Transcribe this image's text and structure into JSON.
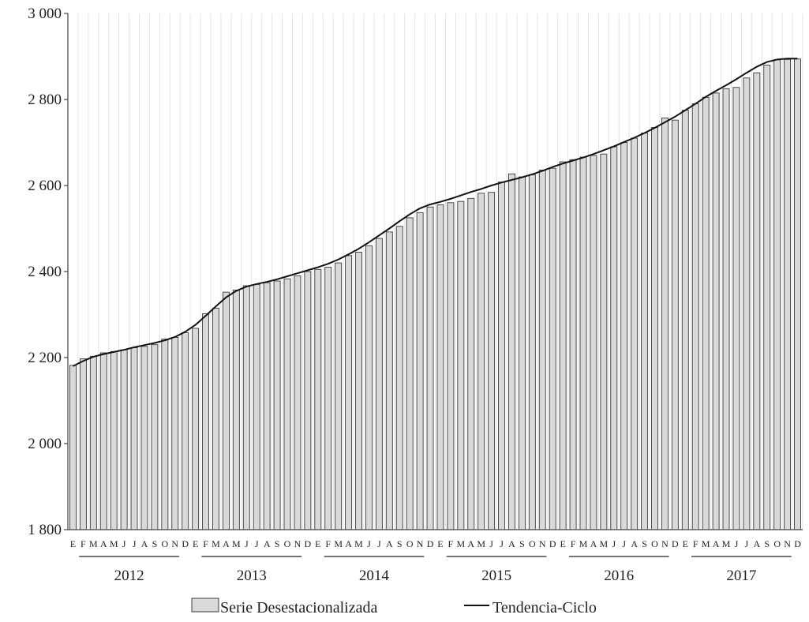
{
  "chart_data": {
    "type": "bar",
    "title": "",
    "xlabel": "",
    "ylabel": "",
    "ylim": [
      1800,
      3000
    ],
    "yticks": [
      "3 000",
      "2 800",
      "2 600",
      "2 400",
      "2 200",
      "2 000",
      "1 800"
    ],
    "ytick_values": [
      3000,
      2800,
      2600,
      2400,
      2200,
      2000,
      1800
    ],
    "grid": true,
    "legend_position": "bottom-center",
    "month_labels": [
      "E",
      "F",
      "M",
      "A",
      "M",
      "J",
      "J",
      "A",
      "S",
      "O",
      "N",
      "D"
    ],
    "years": [
      "2012",
      "2013",
      "2014",
      "2015",
      "2016",
      "2017"
    ],
    "colors": {
      "bar_fill": "#d9d9d9",
      "bar_stroke": "#3a3a3a",
      "line": "#111111",
      "grid": "#e3e3e3"
    },
    "series": [
      {
        "name": "Serie Desestacionalizada",
        "kind": "bar",
        "values": [
          2182,
          2197,
          2203,
          2211,
          2214,
          2218,
          2223,
          2226,
          2230,
          2243,
          2247,
          2258,
          2268,
          2302,
          2315,
          2352,
          2357,
          2367,
          2370,
          2374,
          2378,
          2383,
          2390,
          2400,
          2405,
          2410,
          2420,
          2437,
          2445,
          2460,
          2477,
          2492,
          2505,
          2525,
          2537,
          2550,
          2555,
          2560,
          2563,
          2570,
          2582,
          2584,
          2608,
          2627,
          2620,
          2625,
          2636,
          2640,
          2655,
          2660,
          2666,
          2670,
          2673,
          2690,
          2700,
          2710,
          2722,
          2735,
          2757,
          2752,
          2775,
          2790,
          2805,
          2815,
          2825,
          2828,
          2850,
          2862,
          2880,
          2892,
          2893,
          2894
        ]
      },
      {
        "name": "Tendencia-Ciclo",
        "kind": "line",
        "values": [
          2180,
          2192,
          2202,
          2208,
          2213,
          2218,
          2224,
          2229,
          2234,
          2240,
          2248,
          2260,
          2276,
          2297,
          2319,
          2340,
          2355,
          2365,
          2371,
          2376,
          2382,
          2389,
          2396,
          2403,
          2410,
          2418,
          2428,
          2440,
          2453,
          2468,
          2484,
          2500,
          2517,
          2533,
          2547,
          2556,
          2562,
          2569,
          2577,
          2585,
          2592,
          2600,
          2607,
          2613,
          2619,
          2626,
          2634,
          2643,
          2651,
          2658,
          2665,
          2673,
          2682,
          2691,
          2701,
          2711,
          2722,
          2734,
          2747,
          2760,
          2775,
          2790,
          2806,
          2820,
          2833,
          2847,
          2862,
          2876,
          2887,
          2893,
          2895,
          2895
        ]
      }
    ]
  }
}
